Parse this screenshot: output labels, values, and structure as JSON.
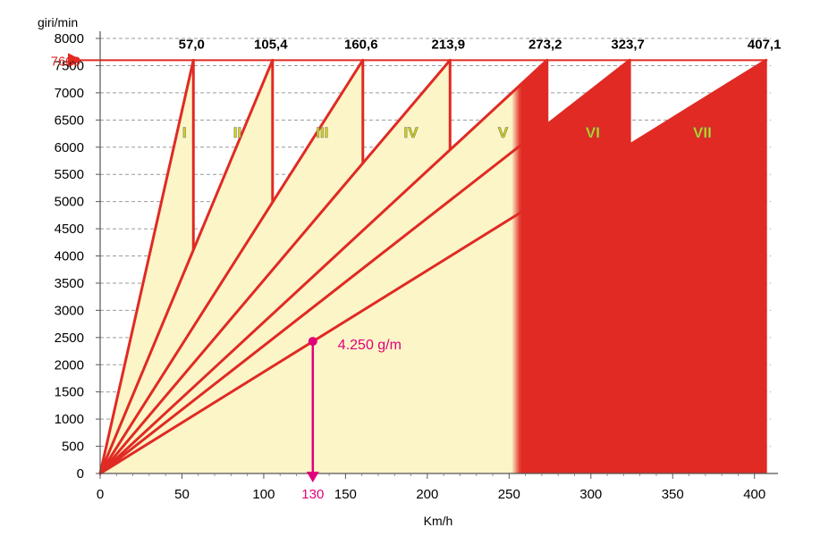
{
  "chart_data": {
    "type": "line",
    "ylabel": "giri/min",
    "xlabel": "Km/h",
    "xlim": [
      0,
      410
    ],
    "ylim": [
      0,
      8000
    ],
    "x_ticks": [
      0,
      50,
      100,
      150,
      200,
      250,
      300,
      350,
      400
    ],
    "x_tick_labels": [
      "0",
      "50",
      "100",
      "150",
      "200",
      "250",
      "300",
      "350",
      "400"
    ],
    "y_ticks": [
      0,
      500,
      1000,
      1500,
      2000,
      2500,
      3000,
      3500,
      4000,
      4500,
      5000,
      5500,
      6000,
      6500,
      7000,
      7500,
      8000
    ],
    "y_tick_labels": [
      "0",
      "500",
      "1000",
      "1500",
      "2000",
      "2500",
      "3000",
      "3500",
      "4000",
      "4500",
      "5000",
      "5500",
      "6000",
      "6500",
      "7000",
      "7500",
      "8000"
    ],
    "grid": true,
    "rpm_limit": 7600,
    "rpm_limit_label": "7600",
    "red_zone_start_kmh": 257,
    "gears": [
      {
        "name": "I",
        "max_speed": 57.0,
        "max_speed_label": "57,0",
        "shift_down_rpm": null
      },
      {
        "name": "II",
        "max_speed": 105.4,
        "max_speed_label": "105,4",
        "shift_down_rpm": 4110
      },
      {
        "name": "III",
        "max_speed": 160.6,
        "max_speed_label": "160,6",
        "shift_down_rpm": 4990
      },
      {
        "name": "IV",
        "max_speed": 213.9,
        "max_speed_label": "213,9",
        "shift_down_rpm": 5690
      },
      {
        "name": "V",
        "max_speed": 273.2,
        "max_speed_label": "273,2",
        "shift_down_rpm": 5950
      },
      {
        "name": "VI",
        "max_speed": 323.7,
        "max_speed_label": "323,7",
        "shift_down_rpm": 6410
      },
      {
        "name": "VII",
        "max_speed": 407.1,
        "max_speed_label": "407,1",
        "shift_down_rpm": 6040
      }
    ],
    "annotation": {
      "speed": 130,
      "speed_label": "130",
      "rpm": 2430,
      "text": "4.250 g/m"
    },
    "colors": {
      "fill_light": "#fbf5c8",
      "red": "#e02a23",
      "line": "#e02a23",
      "annotation": "#e0007a",
      "gear_label": "#d8d800"
    }
  }
}
